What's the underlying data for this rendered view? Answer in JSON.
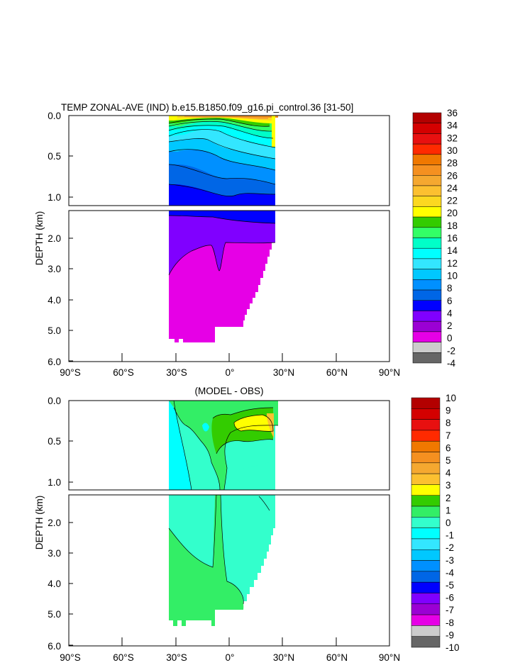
{
  "chart_data": [
    {
      "type": "heatmap",
      "title": "TEMP ZONAL-AVE (IND) b.e15.B1850.f09_g16.pi_control.36 [31-50]",
      "ylabel": "DEPTH (km)",
      "x_ticks": [
        "90°S",
        "60°S",
        "30°S",
        "0°",
        "30°N",
        "60°N",
        "90°N"
      ],
      "y_ticks_upper": [
        "0.0",
        "0.5",
        "1.0"
      ],
      "y_ticks_lower": [
        "2.0",
        "3.0",
        "4.0",
        "5.0",
        "6.0"
      ],
      "xlim": [
        -90,
        90
      ],
      "ylim_km": [
        6.0,
        0.0
      ],
      "colorbar": {
        "labels": [
          "36",
          "34",
          "32",
          "30",
          "28",
          "26",
          "24",
          "22",
          "20",
          "18",
          "16",
          "14",
          "12",
          "10",
          "8",
          "6",
          "4",
          "2",
          "0",
          "-2",
          "-4"
        ],
        "colors": [
          "#b30000",
          "#d40000",
          "#e81010",
          "#ff2a00",
          "#f07800",
          "#f59020",
          "#f5a830",
          "#fcc030",
          "#fcd820",
          "#ffff00",
          "#33cc00",
          "#33ff66",
          "#00ffc8",
          "#00ffff",
          "#33e6ff",
          "#00c8ff",
          "#0090ff",
          "#0066e6",
          "#0000ff",
          "#8000ff",
          "#9b00d4",
          "#e600e6",
          "#cccccc",
          "#666666"
        ]
      }
    },
    {
      "type": "heatmap",
      "title": "(MODEL - OBS)",
      "ylabel": "DEPTH (km)",
      "x_ticks": [
        "90°S",
        "60°S",
        "30°S",
        "0°",
        "30°N",
        "60°N",
        "90°N"
      ],
      "y_ticks_upper": [
        "0.0",
        "0.5",
        "1.0"
      ],
      "y_ticks_lower": [
        "2.0",
        "3.0",
        "4.0",
        "5.0",
        "6.0"
      ],
      "xlim": [
        -90,
        90
      ],
      "ylim_km": [
        6.0,
        0.0
      ],
      "colorbar": {
        "labels": [
          "10",
          "9",
          "8",
          "7",
          "6",
          "5",
          "4",
          "3",
          "2",
          "1",
          "0",
          "-1",
          "-2",
          "-3",
          "-4",
          "-5",
          "-6",
          "-7",
          "-8",
          "-9",
          "-10"
        ],
        "colors": [
          "#b30000",
          "#d40000",
          "#e81010",
          "#ff2a00",
          "#f07800",
          "#f59020",
          "#f5a830",
          "#fcc030",
          "#ffff00",
          "#33cc00",
          "#33ee66",
          "#33ffcc",
          "#00ffff",
          "#33e6ff",
          "#00c8ff",
          "#0090ff",
          "#0066e6",
          "#0000ff",
          "#8000ff",
          "#9b00d4",
          "#e600e6",
          "#cccccc",
          "#666666"
        ]
      }
    }
  ]
}
